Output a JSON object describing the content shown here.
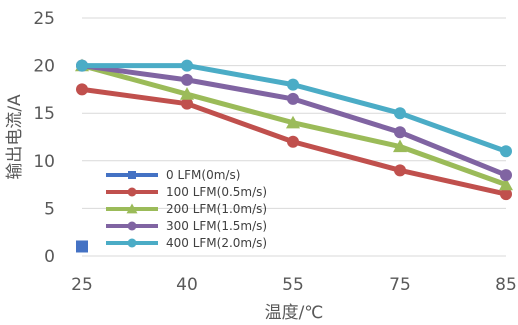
{
  "chart_data": {
    "type": "line",
    "x": [
      "25",
      "40",
      "55",
      "75",
      "85"
    ],
    "xlabel": "温度/℃",
    "ylabel": "输出电流/A",
    "ylim": [
      0,
      25
    ],
    "yticks": [
      "0",
      "5",
      "10",
      "15",
      "20",
      "25"
    ],
    "grid": "horizontal",
    "legend_position": "lower-left",
    "series": [
      {
        "name": "0 LFM(0m/s)",
        "color": "#4472C4",
        "marker": "square",
        "values": [
          1,
          null,
          null,
          null,
          null
        ]
      },
      {
        "name": "100 LFM(0.5m/s)",
        "color": "#C0504D",
        "marker": "circle",
        "values": [
          17.5,
          16,
          12,
          9,
          6.5
        ]
      },
      {
        "name": "200 LFM(1.0m/s)",
        "color": "#9BBB59",
        "marker": "triangle",
        "values": [
          20,
          17,
          14,
          11.5,
          7.5
        ]
      },
      {
        "name": "300 LFM(1.5m/s)",
        "color": "#8064A2",
        "marker": "circle",
        "values": [
          20,
          18.5,
          16.5,
          13,
          8.5
        ]
      },
      {
        "name": "400 LFM(2.0m/s)",
        "color": "#4BACC6",
        "marker": "circle",
        "values": [
          20,
          20,
          18,
          15,
          11
        ]
      }
    ]
  }
}
